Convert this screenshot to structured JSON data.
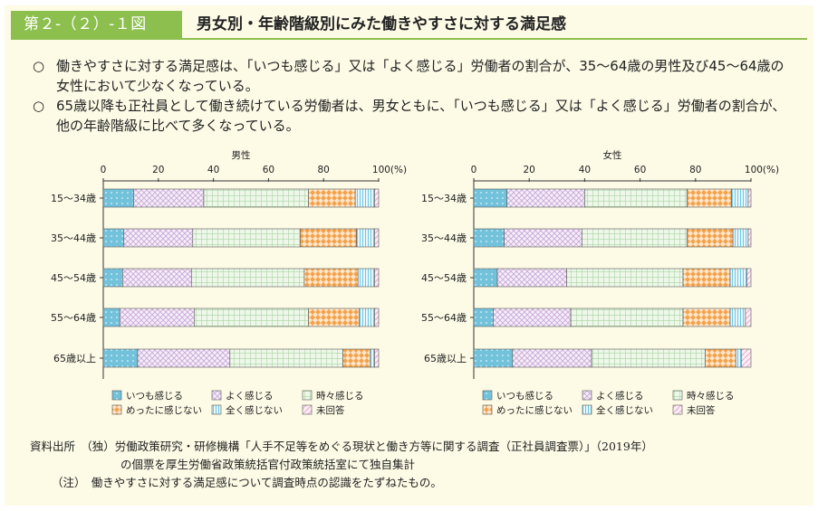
{
  "header": {
    "figure_no": "第２-（２）-１図",
    "title": "男女別・年齢階級別にみた働きやすさに対する満足感"
  },
  "summary": [
    {
      "mark": "○",
      "text": "働きやすさに対する満足感は、「いつも感じる」又は「よく感じる」労働者の割合が、35～64歳の男性及び45～64歳の女性において少なくなっている。"
    },
    {
      "mark": "○",
      "text": "65歳以降も正社員として働き続けている労働者は、男女ともに、「いつも感じる」又は「よく感じる」労働者の割合が、他の年齢階級に比べて多くなっている。"
    }
  ],
  "chart_data": [
    {
      "type": "bar",
      "orientation": "horizontal-stacked",
      "title": "男性",
      "categories": [
        "15～34歳",
        "35～44歳",
        "45～54歳",
        "55～64歳",
        "65歳以上"
      ],
      "xlim": [
        0,
        100
      ],
      "xticks": [
        "0",
        "20",
        "40",
        "60",
        "80",
        "100(%)"
      ],
      "series": [
        {
          "name": "いつも感じる",
          "values": [
            11,
            7.5,
            7,
            6,
            12.5
          ]
        },
        {
          "name": "よく感じる",
          "values": [
            25.5,
            25,
            25,
            27,
            33.5
          ]
        },
        {
          "name": "時々感じる",
          "values": [
            38,
            39,
            41,
            41.5,
            41
          ]
        },
        {
          "name": "めったに感じない",
          "values": [
            17,
            20.5,
            19.5,
            18.5,
            10
          ]
        },
        {
          "name": "全く感じない",
          "values": [
            7,
            6.5,
            6,
            5.5,
            1.5
          ]
        },
        {
          "name": "未回答",
          "values": [
            1.5,
            1.5,
            1.5,
            1.5,
            1.5
          ]
        }
      ]
    },
    {
      "type": "bar",
      "orientation": "horizontal-stacked",
      "title": "女性",
      "categories": [
        "15～34歳",
        "35～44歳",
        "45～54歳",
        "55～64歳",
        "65歳以上"
      ],
      "xlim": [
        0,
        100
      ],
      "xticks": [
        "0",
        "20",
        "40",
        "60",
        "80",
        "100(%)"
      ],
      "series": [
        {
          "name": "いつも感じる",
          "values": [
            12,
            11,
            8.5,
            7,
            14
          ]
        },
        {
          "name": "よく感じる",
          "values": [
            28,
            28,
            25,
            28,
            28.5
          ]
        },
        {
          "name": "時々感じる",
          "values": [
            37,
            38,
            42,
            40.5,
            41
          ]
        },
        {
          "name": "めったに感じない",
          "values": [
            16,
            16.5,
            17,
            17,
            11
          ]
        },
        {
          "name": "全く感じない",
          "values": [
            6,
            5.5,
            6,
            5.5,
            2
          ]
        },
        {
          "name": "未回答",
          "values": [
            1,
            1,
            1.5,
            2,
            3.5
          ]
        }
      ]
    }
  ],
  "colors": {
    "いつも感じる": "#4fb3d3",
    "よく感じる": "#c9a8d6",
    "時々感じる": "#a8d4a0",
    "めったに感じない": "#f4a24a",
    "全く感じない": "#6cc7e3",
    "未回答": "#e8a6c8",
    "header": "#8cbf4e"
  },
  "notes": {
    "source_line1": "資料出所　（独）労働政策研究・研修機構「人手不足等をめぐる現状と働き方等に関する調査（正社員調査票）」（2019年）",
    "source_line2": "の個票を厚生労働省政策統括官付政策統括室にて独自集計",
    "note": "（注）　働きやすさに対する満足感について調査時点の認識をたずねたもの。"
  }
}
